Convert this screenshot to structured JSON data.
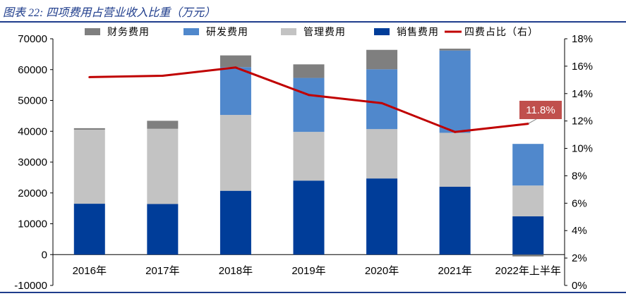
{
  "caption": "图表 22:  四项费用占营业收入比重（万元）",
  "chart_data": {
    "type": "bar",
    "stacked": true,
    "categories": [
      "2016年",
      "2017年",
      "2018年",
      "2019年",
      "2020年",
      "2021年",
      "2022年上半年"
    ],
    "series": [
      {
        "name": "销售费用",
        "color": "#003d99",
        "values": [
          16500,
          16400,
          20700,
          24000,
          24700,
          22000,
          12400
        ]
      },
      {
        "name": "管理费用",
        "color": "#c3c3c3",
        "values": [
          24000,
          24400,
          24600,
          15800,
          16000,
          17500,
          10000
        ]
      },
      {
        "name": "研发费用",
        "color": "#5088cc",
        "values": [
          0,
          0,
          15500,
          17500,
          19400,
          26700,
          13500
        ]
      },
      {
        "name": "财务费用",
        "color": "#7f7f7f",
        "values": [
          500,
          2600,
          3800,
          4400,
          6300,
          600,
          -600
        ]
      }
    ],
    "line_series": {
      "name": "四费占比（右）",
      "color": "#c00000",
      "values": [
        15.2,
        15.3,
        15.9,
        13.9,
        13.3,
        11.2,
        11.8
      ]
    },
    "callout": "11.8%",
    "ylim": [
      -10000,
      70000
    ],
    "y_ticks": [
      "70000",
      "60000",
      "50000",
      "40000",
      "30000",
      "20000",
      "10000",
      "0",
      "-10000"
    ],
    "y2lim": [
      0,
      18
    ],
    "y2_ticks": [
      "18%",
      "16%",
      "14%",
      "12%",
      "10%",
      "8%",
      "6%",
      "4%",
      "2%",
      "0%"
    ],
    "legend": [
      "财务费用",
      "研发费用",
      "管理费用",
      "销售费用",
      "四费占比（右）"
    ],
    "legend_position": "top"
  }
}
